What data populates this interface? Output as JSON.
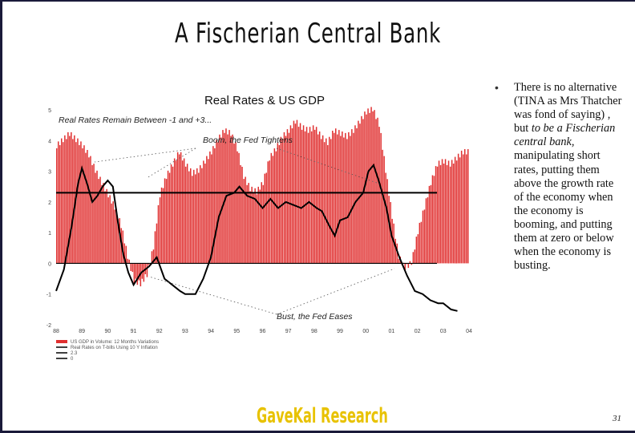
{
  "slide": {
    "title": "A Fischerian Central Bank",
    "body_before": "There is no alternative (TINA as Mrs Thatcher was fond of saying) , but ",
    "body_italic": "to be a Fischerian central bank,",
    "body_after": " manipulating short rates, putting them above the growth rate of the economy when the economy is booming, and putting them at zero or below when the economy is busting.",
    "bullet": "•",
    "brand": "GaveKal Research",
    "page_number": "31"
  },
  "chart_data": {
    "type": "bar",
    "title": "Real Rates  & US GDP",
    "annotations": [
      "Real Rates Remain Between -1 and +3...",
      "Boom, the Fed Tightens",
      "Bust, the Fed Eases"
    ],
    "x_ticks": [
      "88",
      "89",
      "90",
      "91",
      "92",
      "93",
      "94",
      "95",
      "96",
      "97",
      "98",
      "99",
      "00",
      "01",
      "02",
      "03",
      "04"
    ],
    "y_ticks": [
      "5",
      "4",
      "3",
      "2",
      "1",
      "0",
      "-1",
      "-2"
    ],
    "ylim": [
      -2,
      5
    ],
    "xlim": [
      1988,
      2004
    ],
    "legend": [
      {
        "label": "US GDP in Volume: 12 Months Variations",
        "color": "#e03030"
      },
      {
        "label": "Real Rates on T-bills Using 10 Y Inflation",
        "color": "#000000"
      },
      {
        "label": "2.3",
        "color": "#000000"
      },
      {
        "label": "0",
        "color": "#000000"
      }
    ],
    "reference_lines": [
      2.3,
      0
    ],
    "colors": {
      "gdp_bars": "#e03030",
      "real_rate": "#000000"
    },
    "series": [
      {
        "name": "US GDP in Volume: 12 Months Variations",
        "kind": "bar",
        "points": [
          [
            1988.0,
            3.8
          ],
          [
            1988.25,
            4.0
          ],
          [
            1988.5,
            4.2
          ],
          [
            1988.75,
            4.0
          ],
          [
            1989.0,
            3.8
          ],
          [
            1989.25,
            3.5
          ],
          [
            1989.5,
            3.0
          ],
          [
            1989.75,
            2.6
          ],
          [
            1990.0,
            2.2
          ],
          [
            1990.25,
            1.8
          ],
          [
            1990.5,
            1.2
          ],
          [
            1990.75,
            0.2
          ],
          [
            1991.0,
            -0.6
          ],
          [
            1991.25,
            -0.7
          ],
          [
            1991.5,
            -0.4
          ],
          [
            1991.75,
            0.5
          ],
          [
            1992.0,
            2.2
          ],
          [
            1992.25,
            2.8
          ],
          [
            1992.5,
            3.2
          ],
          [
            1992.75,
            3.6
          ],
          [
            1993.0,
            3.2
          ],
          [
            1993.25,
            2.9
          ],
          [
            1993.5,
            3.0
          ],
          [
            1993.75,
            3.3
          ],
          [
            1994.0,
            3.6
          ],
          [
            1994.25,
            4.0
          ],
          [
            1994.5,
            4.3
          ],
          [
            1994.75,
            4.2
          ],
          [
            1995.0,
            3.7
          ],
          [
            1995.25,
            2.8
          ],
          [
            1995.5,
            2.4
          ],
          [
            1995.75,
            2.3
          ],
          [
            1996.0,
            2.6
          ],
          [
            1996.25,
            3.4
          ],
          [
            1996.5,
            3.7
          ],
          [
            1996.75,
            4.1
          ],
          [
            1997.0,
            4.3
          ],
          [
            1997.25,
            4.6
          ],
          [
            1997.5,
            4.4
          ],
          [
            1997.75,
            4.3
          ],
          [
            1998.0,
            4.4
          ],
          [
            1998.25,
            4.1
          ],
          [
            1998.5,
            3.9
          ],
          [
            1998.75,
            4.3
          ],
          [
            1999.0,
            4.2
          ],
          [
            1999.25,
            4.1
          ],
          [
            1999.5,
            4.3
          ],
          [
            1999.75,
            4.6
          ],
          [
            2000.0,
            4.9
          ],
          [
            2000.25,
            5.0
          ],
          [
            2000.5,
            4.5
          ],
          [
            2000.75,
            3.0
          ],
          [
            2001.0,
            1.5
          ],
          [
            2001.25,
            0.2
          ],
          [
            2001.5,
            -0.2
          ],
          [
            2001.75,
            0.0
          ],
          [
            2002.0,
            1.0
          ],
          [
            2002.25,
            1.8
          ],
          [
            2002.5,
            2.6
          ],
          [
            2002.75,
            3.2
          ],
          [
            2003.0,
            3.3
          ],
          [
            2003.25,
            3.2
          ],
          [
            2003.5,
            3.4
          ],
          [
            2003.75,
            3.6
          ]
        ]
      },
      {
        "name": "Real Rates on T-bills Using 10 Y Inflation",
        "kind": "line",
        "points": [
          [
            1988.0,
            -0.9
          ],
          [
            1988.3,
            -0.2
          ],
          [
            1988.6,
            1.2
          ],
          [
            1988.85,
            2.6
          ],
          [
            1989.0,
            3.1
          ],
          [
            1989.2,
            2.6
          ],
          [
            1989.4,
            2.0
          ],
          [
            1989.6,
            2.2
          ],
          [
            1989.8,
            2.5
          ],
          [
            1990.0,
            2.7
          ],
          [
            1990.2,
            2.5
          ],
          [
            1990.4,
            1.3
          ],
          [
            1990.6,
            0.3
          ],
          [
            1990.8,
            -0.3
          ],
          [
            1991.0,
            -0.7
          ],
          [
            1991.3,
            -0.3
          ],
          [
            1991.6,
            -0.1
          ],
          [
            1991.9,
            0.2
          ],
          [
            1992.2,
            -0.5
          ],
          [
            1992.5,
            -0.7
          ],
          [
            1992.8,
            -0.9
          ],
          [
            1993.0,
            -1.0
          ],
          [
            1993.4,
            -1.0
          ],
          [
            1993.7,
            -0.5
          ],
          [
            1994.0,
            0.2
          ],
          [
            1994.3,
            1.5
          ],
          [
            1994.6,
            2.2
          ],
          [
            1994.9,
            2.3
          ],
          [
            1995.1,
            2.5
          ],
          [
            1995.4,
            2.2
          ],
          [
            1995.7,
            2.1
          ],
          [
            1996.0,
            1.8
          ],
          [
            1996.3,
            2.1
          ],
          [
            1996.6,
            1.8
          ],
          [
            1996.9,
            2.0
          ],
          [
            1997.2,
            1.9
          ],
          [
            1997.5,
            1.8
          ],
          [
            1997.8,
            2.0
          ],
          [
            1998.1,
            1.8
          ],
          [
            1998.3,
            1.7
          ],
          [
            1998.6,
            1.2
          ],
          [
            1998.8,
            0.9
          ],
          [
            1999.0,
            1.4
          ],
          [
            1999.3,
            1.5
          ],
          [
            1999.6,
            2.0
          ],
          [
            1999.9,
            2.3
          ],
          [
            2000.1,
            3.0
          ],
          [
            2000.3,
            3.2
          ],
          [
            2000.5,
            2.7
          ],
          [
            2000.8,
            1.8
          ],
          [
            2001.0,
            0.9
          ],
          [
            2001.3,
            0.2
          ],
          [
            2001.6,
            -0.4
          ],
          [
            2001.9,
            -0.9
          ],
          [
            2002.2,
            -1.0
          ],
          [
            2002.5,
            -1.2
          ],
          [
            2002.8,
            -1.3
          ],
          [
            2003.0,
            -1.3
          ],
          [
            2003.3,
            -1.5
          ],
          [
            2003.55,
            -1.55
          ]
        ]
      }
    ]
  }
}
